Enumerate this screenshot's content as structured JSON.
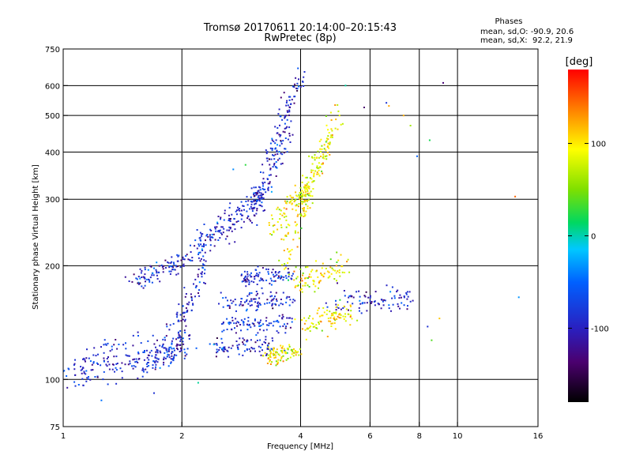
{
  "chart_data": {
    "type": "scatter",
    "title": "Tromsø 20170611 20:14:00–20:15:43",
    "subtitle": "RwPretec (8p)",
    "stats_title": "Phases",
    "stats_line1": "mean, sd,O: -90.9, 20.6",
    "stats_line2": "mean, sd,X:  92.2, 21.9",
    "xlabel": "Frequency [MHz]",
    "ylabel": "Stationary phase Virtual Height [km]",
    "xscale": "log",
    "yscale": "log",
    "xlim": [
      1,
      16
    ],
    "ylim": [
      75,
      750
    ],
    "xticks": [
      1,
      2,
      4,
      6,
      8,
      10,
      16
    ],
    "yticks": [
      75,
      100,
      200,
      300,
      400,
      500,
      600,
      750
    ],
    "grid": true,
    "colorbar": {
      "label": "[deg]",
      "range": [
        -180,
        180
      ],
      "ticks": [
        100,
        0,
        -100
      ]
    },
    "series": [
      {
        "polarization": "O",
        "phase_mean": -90.9,
        "traces": [
          {
            "from": [
              1.0,
              102
            ],
            "to": [
              1.7,
              112
            ],
            "thickness": 0.05
          },
          {
            "from": [
              1.7,
              112
            ],
            "to": [
              2.1,
              125
            ],
            "thickness": 0.04
          },
          {
            "from": [
              1.1,
              110
            ],
            "to": [
              1.9,
              128
            ],
            "thickness": 0.06
          },
          {
            "from": [
              1.9,
              125
            ],
            "to": [
              2.3,
              210
            ],
            "thickness": 0.05
          },
          {
            "from": [
              2.0,
              200
            ],
            "to": [
              3.2,
              300
            ],
            "thickness": 0.04
          },
          {
            "from": [
              2.2,
              230
            ],
            "to": [
              3.4,
              330
            ],
            "thickness": 0.04
          },
          {
            "from": [
              3.0,
              270
            ],
            "to": [
              3.8,
              450
            ],
            "thickness": 0.05
          },
          {
            "from": [
              3.3,
              380
            ],
            "to": [
              4.0,
              640
            ],
            "thickness": 0.04
          },
          {
            "from": [
              2.4,
              120
            ],
            "to": [
              3.5,
              125
            ],
            "thickness": 0.03
          },
          {
            "from": [
              2.5,
              140
            ],
            "to": [
              3.8,
              142
            ],
            "thickness": 0.03
          },
          {
            "from": [
              2.6,
              160
            ],
            "to": [
              3.8,
              162
            ],
            "thickness": 0.03
          },
          {
            "from": [
              2.8,
              185
            ],
            "to": [
              3.8,
              188
            ],
            "thickness": 0.03
          },
          {
            "from": [
              4.8,
              160
            ],
            "to": [
              7.8,
              165
            ],
            "thickness": 0.04
          },
          {
            "from": [
              1.5,
              180
            ],
            "to": [
              2.0,
              205
            ],
            "thickness": 0.03
          }
        ]
      },
      {
        "polarization": "X",
        "phase_mean": 92.2,
        "traces": [
          {
            "from": [
              3.3,
              115
            ],
            "to": [
              3.9,
              118
            ],
            "thickness": 0.03
          },
          {
            "from": [
              3.6,
              200
            ],
            "to": [
              4.8,
              450
            ],
            "thickness": 0.05
          },
          {
            "from": [
              4.0,
              280
            ],
            "to": [
              5.0,
              520
            ],
            "thickness": 0.05
          },
          {
            "from": [
              3.8,
              180
            ],
            "to": [
              5.2,
              200
            ],
            "thickness": 0.04
          },
          {
            "from": [
              4.0,
              140
            ],
            "to": [
              5.4,
              150
            ],
            "thickness": 0.04
          },
          {
            "from": [
              3.4,
              250
            ],
            "to": [
              4.2,
              330
            ],
            "thickness": 0.04
          }
        ]
      }
    ],
    "extra_points": [
      [
        6.6,
        540
      ],
      [
        6.7,
        530
      ],
      [
        7.3,
        500
      ],
      [
        7.6,
        470
      ],
      [
        8.5,
        430
      ],
      [
        9.2,
        610
      ],
      [
        14.0,
        305
      ],
      [
        14.3,
        165
      ],
      [
        1.25,
        88
      ],
      [
        1.7,
        92
      ],
      [
        2.2,
        98
      ],
      [
        9.0,
        145
      ],
      [
        8.4,
        138
      ],
      [
        8.6,
        127
      ],
      [
        5.8,
        525
      ],
      [
        5.2,
        600
      ],
      [
        2.7,
        360
      ],
      [
        2.9,
        370
      ],
      [
        4.2,
        390
      ],
      [
        7.9,
        390
      ]
    ]
  }
}
